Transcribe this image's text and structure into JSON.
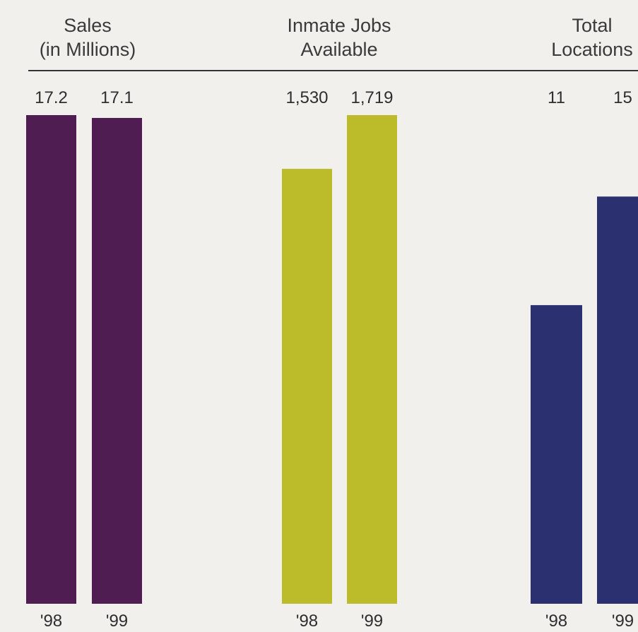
{
  "chart_data": [
    {
      "type": "bar",
      "title": [
        "Sales",
        "(in Millions)"
      ],
      "categories": [
        "'98",
        "'99"
      ],
      "values": [
        17.2,
        17.1
      ],
      "value_labels": [
        "17.2",
        "17.1"
      ],
      "color": "#4f1d51",
      "ylim": [
        0,
        17.2
      ]
    },
    {
      "type": "bar",
      "title": [
        "Inmate Jobs",
        "Available"
      ],
      "categories": [
        "'98",
        "'99"
      ],
      "values": [
        1530,
        1719
      ],
      "value_labels": [
        "1,530",
        "1,719"
      ],
      "color": "#bcbc2a",
      "ylim": [
        0,
        1719
      ]
    },
    {
      "type": "bar",
      "title": [
        "Total",
        "Locations"
      ],
      "categories": [
        "'98",
        "'99"
      ],
      "values": [
        11,
        15
      ],
      "value_labels": [
        "11",
        "15"
      ],
      "color": "#2a3070",
      "ylim": [
        0,
        18
      ]
    }
  ]
}
